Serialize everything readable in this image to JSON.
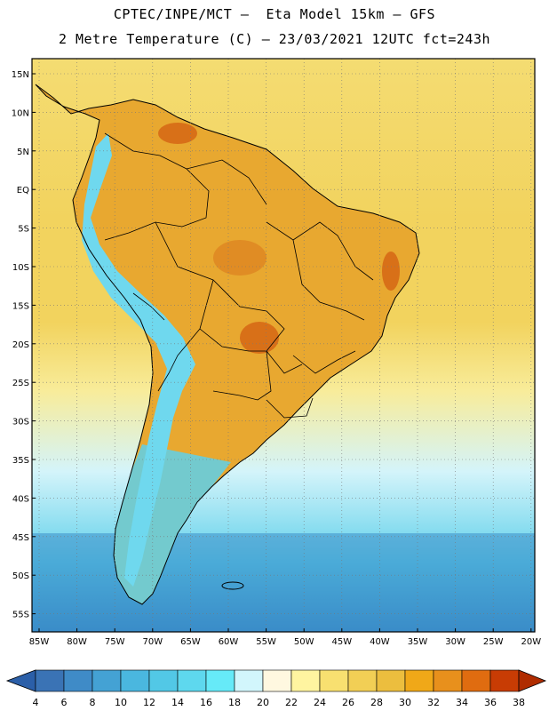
{
  "title_line1": "CPTEC/INPE/MCT –  Eta Model 15km – GFS",
  "title_line2": "2 Metre Temperature (C) – 23/03/2021 12UTC fct=243h",
  "lat_labels": [
    "15N",
    "10N",
    "5N",
    "EQ",
    "5S",
    "10S",
    "15S",
    "20S",
    "25S",
    "30S",
    "35S",
    "40S",
    "45S",
    "50S",
    "55S"
  ],
  "lon_labels": [
    "85W",
    "80W",
    "75W",
    "70W",
    "65W",
    "60W",
    "55W",
    "50W",
    "45W",
    "40W",
    "35W",
    "30W",
    "25W",
    "20W"
  ],
  "colorbar": {
    "values": [
      "4",
      "6",
      "8",
      "10",
      "12",
      "14",
      "16",
      "18",
      "20",
      "22",
      "24",
      "26",
      "28",
      "30",
      "32",
      "34",
      "36",
      "38"
    ],
    "colors": [
      "#3a73b5",
      "#3f8bc7",
      "#44a2d4",
      "#4ab7df",
      "#52c8e6",
      "#5ed8ee",
      "#66eaf8",
      "#d2f6fc",
      "#fff8e0",
      "#fff4a0",
      "#f8e070",
      "#f2cf55",
      "#ecbe3e",
      "#f0a818",
      "#e8901c",
      "#e06c10",
      "#c83c04"
    ],
    "low_color": "#2b5fa8",
    "high_color": "#b02c00"
  },
  "field_colors": {
    "ocean_north": "#f4dc72",
    "ocean_tropics": "#f2d35e",
    "ocean_subtropics": "#f8ec9a",
    "ocean_cool": "#d4f4fa",
    "ocean_cold": "#5ed0ea",
    "ocean_polar": "#3a8cc8",
    "land_hot": "#e8a830",
    "andes": "#6fd8ee",
    "hotspot": "#d87018"
  }
}
